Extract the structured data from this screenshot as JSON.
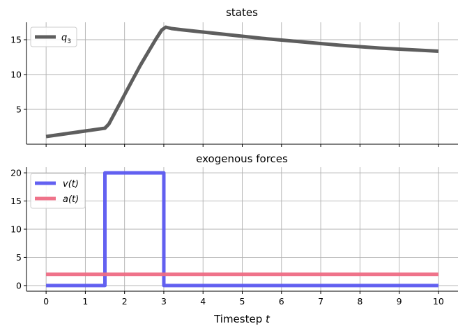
{
  "chart_data": [
    {
      "type": "line",
      "title": "states",
      "x_range": [
        -0.5,
        10.5
      ],
      "ylim": [
        0,
        17.5
      ],
      "x_ticks": [
        0,
        1,
        2,
        3,
        4,
        5,
        6,
        7,
        8,
        9,
        10
      ],
      "x_tick_labels_visible": false,
      "y_ticks": [
        5,
        10,
        15
      ],
      "grid": true,
      "legend_position": "upper-left",
      "series": [
        {
          "name": "q3",
          "legend_base": "q",
          "legend_sub": "3",
          "color": "#555555",
          "x": [
            0,
            0.5,
            1.0,
            1.5,
            1.6,
            1.8,
            2.0,
            2.2,
            2.4,
            2.6,
            2.8,
            2.95,
            3.05,
            3.2,
            3.5,
            4.0,
            4.5,
            5.0,
            5.5,
            6.0,
            6.5,
            7.0,
            7.5,
            8.0,
            8.5,
            9.0,
            9.5,
            10.0
          ],
          "y": [
            1.1,
            1.5,
            1.9,
            2.3,
            2.9,
            5.0,
            7.1,
            9.2,
            11.3,
            13.2,
            15.1,
            16.4,
            16.8,
            16.6,
            16.4,
            16.1,
            15.8,
            15.5,
            15.2,
            14.95,
            14.7,
            14.45,
            14.2,
            14.0,
            13.8,
            13.65,
            13.5,
            13.35
          ]
        }
      ]
    },
    {
      "type": "line",
      "title": "exogenous forces",
      "xlabel_base": "Timestep ",
      "xlabel_var": "t",
      "x_range": [
        -0.5,
        10.5
      ],
      "ylim": [
        -1,
        21
      ],
      "x_ticks": [
        0,
        1,
        2,
        3,
        4,
        5,
        6,
        7,
        8,
        9,
        10
      ],
      "y_ticks": [
        0,
        5,
        10,
        15,
        20
      ],
      "grid": true,
      "legend_position": "upper-left",
      "series": [
        {
          "name": "v(t)",
          "color": "#5b59f0",
          "x": [
            0,
            1.5,
            1.5,
            3.0,
            3.0,
            10
          ],
          "y": [
            0,
            0,
            20,
            20,
            0,
            0
          ]
        },
        {
          "name": "a(t)",
          "color": "#ee6b84",
          "x": [
            0,
            10
          ],
          "y": [
            2,
            2
          ]
        }
      ]
    }
  ]
}
